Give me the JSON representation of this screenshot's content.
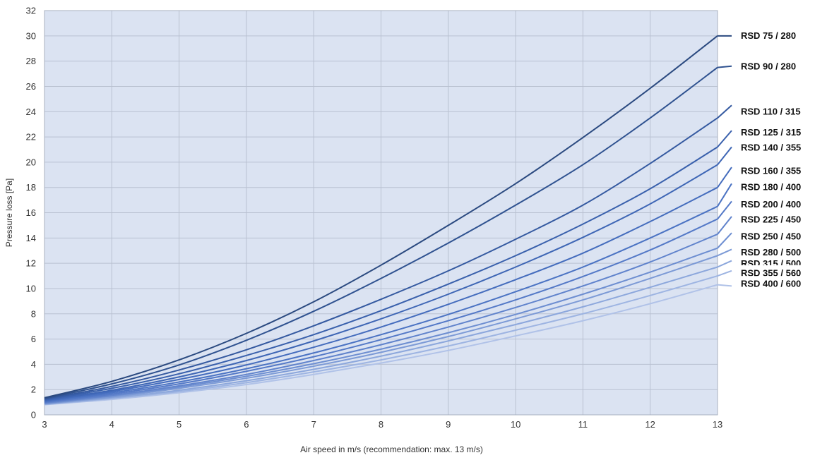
{
  "chart_data": {
    "type": "line",
    "xlabel": "Air speed in m/s (recommendation: max. 13 m/s)",
    "ylabel": "Pressure loss [Pa]",
    "xlim": [
      3,
      13
    ],
    "ylim": [
      0,
      32
    ],
    "xticks": [
      3,
      4,
      5,
      6,
      7,
      8,
      9,
      10,
      11,
      12,
      13
    ],
    "yticks": [
      0,
      2,
      4,
      6,
      8,
      10,
      12,
      14,
      16,
      18,
      20,
      22,
      24,
      26,
      28,
      30,
      32
    ],
    "grid": true,
    "legend_placement": "right",
    "plot_background": "#dbe3f2",
    "gridline_color": "#b9c1d1",
    "series": [
      {
        "name": "RSD  75 / 280",
        "color": "#2b4a80",
        "x": [
          3,
          4,
          5,
          6,
          7,
          8,
          9,
          10,
          11,
          12,
          13
        ],
        "values": [
          1.35,
          2.65,
          4.35,
          6.45,
          8.95,
          11.85,
          15.0,
          18.3,
          21.95,
          25.85,
          30.0
        ],
        "legend_end": 30.0
      },
      {
        "name": "RSD  90 / 280",
        "color": "#2f5290",
        "x": [
          3,
          4,
          5,
          6,
          7,
          8,
          9,
          10,
          11,
          12,
          13
        ],
        "values": [
          1.3,
          2.45,
          3.95,
          5.9,
          8.2,
          10.8,
          13.6,
          16.6,
          19.8,
          23.5,
          27.5
        ],
        "legend_end": 27.6
      },
      {
        "name": "RSD 110 / 315",
        "color": "#3459a0",
        "x": [
          3,
          4,
          5,
          6,
          7,
          8,
          9,
          10,
          11,
          12,
          13
        ],
        "values": [
          1.25,
          2.25,
          3.55,
          5.15,
          7.05,
          9.15,
          11.4,
          13.9,
          16.6,
          19.9,
          23.5
        ],
        "legend_end": 24.5
      },
      {
        "name": "RSD 125 / 315",
        "color": "#3960ac",
        "x": [
          3,
          4,
          5,
          6,
          7,
          8,
          9,
          10,
          11,
          12,
          13
        ],
        "values": [
          1.2,
          2.1,
          3.25,
          4.7,
          6.35,
          8.25,
          10.35,
          12.6,
          15.1,
          17.9,
          21.2
        ],
        "legend_end": 22.5
      },
      {
        "name": "RSD 140 / 355",
        "color": "#3e66b5",
        "x": [
          3,
          4,
          5,
          6,
          7,
          8,
          9,
          10,
          11,
          12,
          13
        ],
        "values": [
          1.15,
          1.95,
          3.0,
          4.3,
          5.85,
          7.6,
          9.55,
          11.7,
          14.05,
          16.7,
          19.8
        ],
        "legend_end": 21.2
      },
      {
        "name": "RSD 160 / 355",
        "color": "#446cbd",
        "x": [
          3,
          4,
          5,
          6,
          7,
          8,
          9,
          10,
          11,
          12,
          13
        ],
        "values": [
          1.1,
          1.85,
          2.8,
          3.95,
          5.35,
          6.95,
          8.75,
          10.7,
          12.8,
          15.3,
          18.0
        ],
        "legend_end": 19.6
      },
      {
        "name": "RSD 180 / 400",
        "color": "#4b73c3",
        "x": [
          3,
          4,
          5,
          6,
          7,
          8,
          9,
          10,
          11,
          12,
          13
        ],
        "values": [
          1.05,
          1.75,
          2.6,
          3.65,
          4.9,
          6.35,
          7.95,
          9.75,
          11.7,
          14.0,
          16.5
        ],
        "legend_end": 18.3
      },
      {
        "name": "RSD 200 / 400",
        "color": "#5479c7",
        "x": [
          3,
          4,
          5,
          6,
          7,
          8,
          9,
          10,
          11,
          12,
          13
        ],
        "values": [
          1.0,
          1.65,
          2.45,
          3.45,
          4.6,
          5.95,
          7.45,
          9.1,
          10.95,
          13.05,
          15.5
        ],
        "legend_end": 16.9
      },
      {
        "name": "RSD 225 / 450",
        "color": "#6083cc",
        "x": [
          3,
          4,
          5,
          6,
          7,
          8,
          9,
          10,
          11,
          12,
          13
        ],
        "values": [
          0.95,
          1.55,
          2.3,
          3.2,
          4.3,
          5.55,
          6.95,
          8.5,
          10.2,
          12.1,
          14.3
        ],
        "legend_end": 15.7
      },
      {
        "name": "RSD 250 / 450",
        "color": "#6d8ed1",
        "x": [
          3,
          4,
          5,
          6,
          7,
          8,
          9,
          10,
          11,
          12,
          13
        ],
        "values": [
          0.9,
          1.5,
          2.2,
          3.05,
          4.05,
          5.2,
          6.5,
          7.95,
          9.55,
          11.3,
          13.2
        ],
        "legend_end": 14.4
      },
      {
        "name": "RSD 280 / 500",
        "color": "#7c9ad6",
        "x": [
          3,
          4,
          5,
          6,
          7,
          8,
          9,
          10,
          11,
          12,
          13
        ],
        "values": [
          0.88,
          1.42,
          2.1,
          2.9,
          3.85,
          4.95,
          6.2,
          7.6,
          9.1,
          10.8,
          12.6
        ],
        "legend_end": 13.1
      },
      {
        "name": "RSD 315 / 500",
        "color": "#8ca7dc",
        "x": [
          3,
          4,
          5,
          6,
          7,
          8,
          9,
          10,
          11,
          12,
          13
        ],
        "values": [
          0.85,
          1.35,
          1.95,
          2.7,
          3.6,
          4.65,
          5.85,
          7.15,
          8.55,
          10.1,
          11.7
        ],
        "legend_end": 12.2
      },
      {
        "name": "RSD 355 / 560",
        "color": "#9db4e2",
        "x": [
          3,
          4,
          5,
          6,
          7,
          8,
          9,
          10,
          11,
          12,
          13
        ],
        "values": [
          0.82,
          1.3,
          1.85,
          2.55,
          3.4,
          4.35,
          5.45,
          6.7,
          8.0,
          9.45,
          11.0
        ],
        "legend_end": 11.4
      },
      {
        "name": "RSD 400 / 600",
        "color": "#b0c2e8",
        "x": [
          3,
          4,
          5,
          6,
          7,
          8,
          9,
          10,
          11,
          12,
          13
        ],
        "values": [
          0.8,
          1.22,
          1.75,
          2.4,
          3.2,
          4.1,
          5.1,
          6.25,
          7.45,
          8.8,
          10.3
        ],
        "legend_end": 10.2
      }
    ],
    "legend_positions": [
      30.0,
      27.55,
      24.0,
      22.35,
      21.15,
      19.3,
      18.0,
      16.65,
      15.45,
      14.1,
      12.85,
      11.95,
      11.2,
      10.35
    ]
  }
}
